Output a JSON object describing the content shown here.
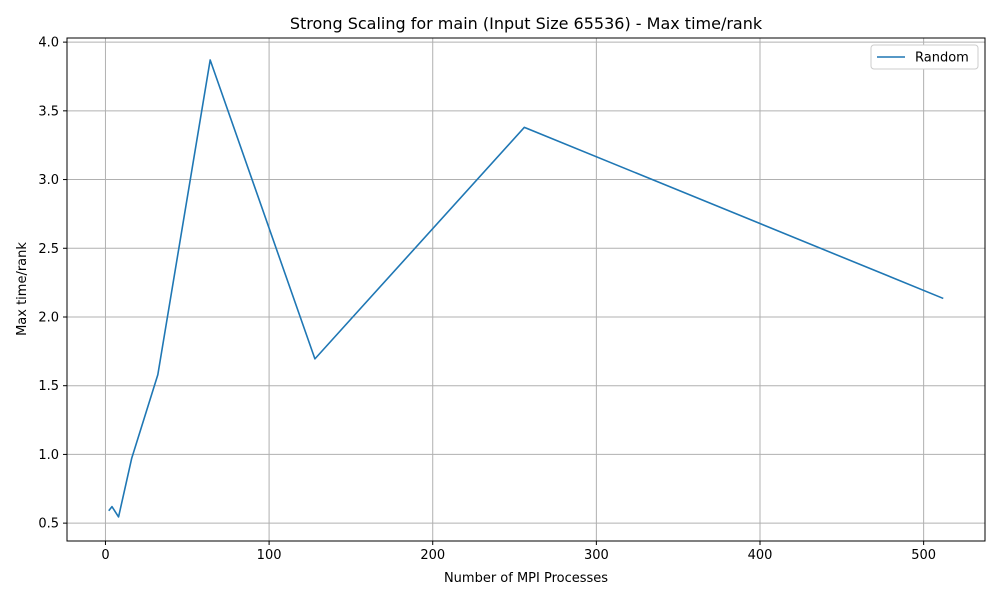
{
  "chart_data": {
    "type": "line",
    "title": "Strong Scaling for main (Input Size 65536) - Max time/rank",
    "xlabel": "Number of MPI Processes",
    "ylabel": "Max time/rank",
    "xlim": [
      -23.5,
      537.5
    ],
    "ylim": [
      0.37,
      4.03
    ],
    "xticks": [
      0,
      100,
      200,
      300,
      400,
      500
    ],
    "yticks": [
      0.5,
      1.0,
      1.5,
      2.0,
      2.5,
      3.0,
      3.5,
      4.0
    ],
    "xtick_labels": [
      "0",
      "100",
      "200",
      "300",
      "400",
      "500"
    ],
    "ytick_labels": [
      "0.5",
      "1.0",
      "1.5",
      "2.0",
      "2.5",
      "3.0",
      "3.5",
      "4.0"
    ],
    "grid": true,
    "legend_position": "top-right",
    "series": [
      {
        "name": "Random",
        "color": "#1f77b4",
        "x": [
          2,
          4,
          8,
          16,
          32,
          64,
          128,
          256,
          512
        ],
        "y": [
          0.59,
          0.62,
          0.545,
          0.97,
          1.58,
          3.87,
          1.695,
          3.38,
          2.135
        ]
      }
    ]
  }
}
